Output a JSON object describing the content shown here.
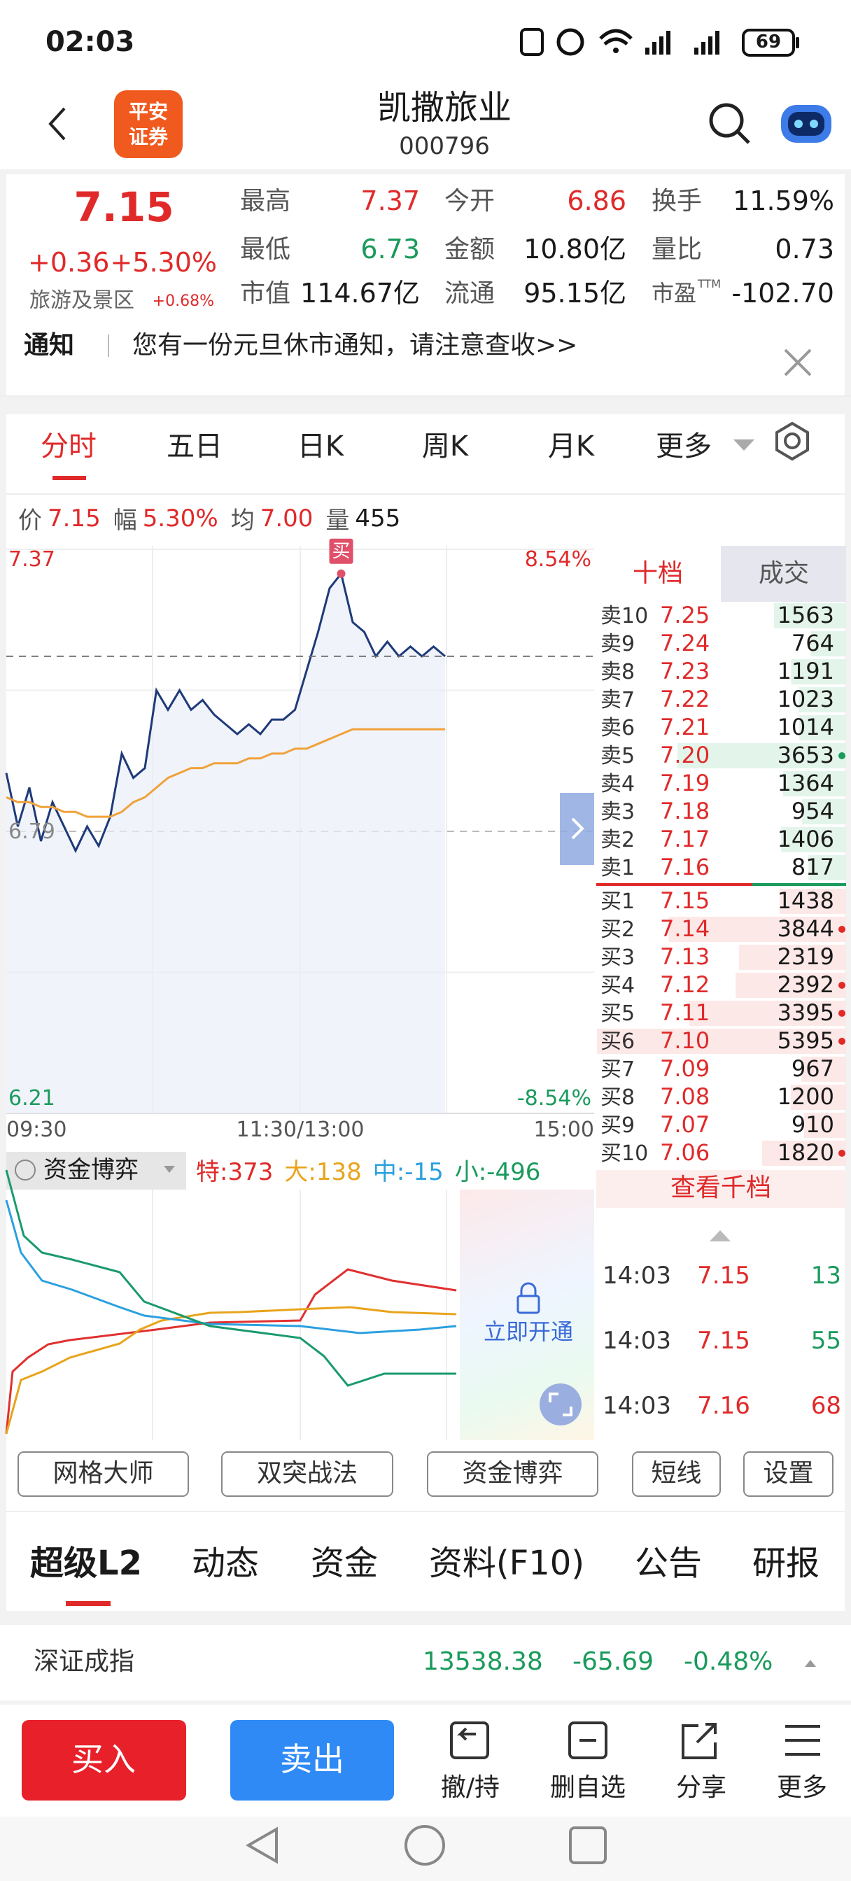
{
  "status_bar": {
    "time": "02:03",
    "battery": "69"
  },
  "header": {
    "logo": [
      "平安",
      "证券"
    ],
    "title": "凯撒旅业",
    "code": "000796"
  },
  "quote": {
    "price": "7.15",
    "change": "+0.36",
    "change_pct": "+5.30%",
    "sector": "旅游及景区",
    "sector_change": "+0.68%",
    "stats": [
      {
        "label": "最高",
        "value": "7.37"
      },
      {
        "label": "今开",
        "value": "6.86"
      },
      {
        "label": "换手",
        "value": "11.59%"
      },
      {
        "label": "最低",
        "value": "6.73"
      },
      {
        "label": "金额",
        "value": "10.80亿"
      },
      {
        "label": "量比",
        "value": "0.73"
      },
      {
        "label": "市值",
        "value": "114.67亿"
      },
      {
        "label": "流通",
        "value": "95.15亿"
      },
      {
        "label": "市盈",
        "label_sup": "TTM",
        "value": "-102.70"
      }
    ]
  },
  "notice": {
    "tag": "通知",
    "text": "您有一份元旦休市通知，请注意查收>>"
  },
  "chart_tabs": [
    "分时",
    "五日",
    "日K",
    "周K",
    "月K",
    "更多"
  ],
  "info_bar": [
    {
      "label": "价",
      "value": "7.15"
    },
    {
      "label": "幅",
      "value": "5.30%"
    },
    {
      "label": "均",
      "value": "7.00"
    },
    {
      "label": "量",
      "value": "455"
    }
  ],
  "chart_data": {
    "type": "line",
    "ylim": [
      6.21,
      7.37
    ],
    "yticks": [
      6.21,
      6.79,
      7.37
    ],
    "y2lim": [
      -8.54,
      8.54
    ],
    "y2ticks": [
      {
        "value": -8.54,
        "label": "-8.54%"
      },
      {
        "value": 8.54,
        "label": "8.54%"
      }
    ],
    "xticks": [
      "09:30",
      "11:30/13:00",
      "15:00"
    ],
    "grid": true,
    "buy_marker": "买",
    "series": [
      {
        "color": "#1e3a78",
        "values": [
          6.91,
          6.8,
          6.88,
          6.77,
          6.85,
          6.8,
          6.75,
          6.8,
          6.76,
          6.82,
          6.95,
          6.9,
          6.92,
          7.08,
          7.04,
          7.08,
          7.04,
          7.06,
          7.03,
          7.01,
          6.99,
          7.01,
          6.99,
          7.02,
          7.02,
          7.04,
          7.12,
          7.2,
          7.29,
          7.32,
          7.22,
          7.2,
          7.15,
          7.18,
          7.15,
          7.17,
          7.15,
          7.17,
          7.15
        ]
      },
      {
        "color": "#f0a23a",
        "values": [
          6.86,
          6.85,
          6.85,
          6.84,
          6.84,
          6.83,
          6.83,
          6.82,
          6.82,
          6.82,
          6.83,
          6.85,
          6.86,
          6.88,
          6.9,
          6.91,
          6.92,
          6.92,
          6.93,
          6.93,
          6.93,
          6.94,
          6.94,
          6.95,
          6.95,
          6.96,
          6.96,
          6.97,
          6.98,
          6.99,
          7.0,
          7.0,
          7.0,
          7.0,
          7.0,
          7.0,
          7.0,
          7.0,
          7.0
        ]
      }
    ]
  },
  "order_book": {
    "tabs": [
      "十档",
      "成交"
    ],
    "asks": [
      {
        "label": "卖10",
        "price": "7.25",
        "volume": 1563
      },
      {
        "label": "卖9",
        "price": "7.24",
        "volume": 764
      },
      {
        "label": "卖8",
        "price": "7.23",
        "volume": 1191
      },
      {
        "label": "卖7",
        "price": "7.22",
        "volume": 1023
      },
      {
        "label": "卖6",
        "price": "7.21",
        "volume": 1014
      },
      {
        "label": "卖5",
        "price": "7.20",
        "volume": 3653,
        "dot": true
      },
      {
        "label": "卖4",
        "price": "7.19",
        "volume": 1364
      },
      {
        "label": "卖3",
        "price": "7.18",
        "volume": 954
      },
      {
        "label": "卖2",
        "price": "7.17",
        "volume": 1406
      },
      {
        "label": "卖1",
        "price": "7.16",
        "volume": 817
      }
    ],
    "bids": [
      {
        "label": "买1",
        "price": "7.15",
        "volume": 1438
      },
      {
        "label": "买2",
        "price": "7.14",
        "volume": 3844,
        "dot": true
      },
      {
        "label": "买3",
        "price": "7.13",
        "volume": 2319
      },
      {
        "label": "买4",
        "price": "7.12",
        "volume": 2392,
        "dot": true
      },
      {
        "label": "买5",
        "price": "7.11",
        "volume": 3395,
        "dot": true
      },
      {
        "label": "买6",
        "price": "7.10",
        "volume": 5395,
        "dot": true
      },
      {
        "label": "买7",
        "price": "7.09",
        "volume": 967
      },
      {
        "label": "买8",
        "price": "7.08",
        "volume": 1200
      },
      {
        "label": "买9",
        "price": "7.07",
        "volume": 910
      },
      {
        "label": "买10",
        "price": "7.06",
        "volume": 1820,
        "dot": true
      }
    ],
    "more": "查看千档"
  },
  "trades": [
    {
      "time": "14:03",
      "price": "7.15",
      "volume": "13"
    },
    {
      "time": "14:03",
      "price": "7.15",
      "volume": "55"
    },
    {
      "time": "14:03",
      "price": "7.16",
      "volume": "68"
    }
  ],
  "fund_game": {
    "title": "资金博弈",
    "items": [
      "特:373",
      "大:138",
      "中:-15",
      "小:-496"
    ],
    "lock_text": "立即开通"
  },
  "tools": [
    "网格大师",
    "双突战法",
    "资金博弈",
    "短线",
    "设置"
  ],
  "detail_tabs": [
    "超级L2",
    "动态",
    "资金",
    "资料(F10)",
    "公告",
    "研报"
  ],
  "index": {
    "name": "深证成指",
    "value": "13538.38",
    "change": "-65.69",
    "change_pct": "-0.48%"
  },
  "bottom_bar": {
    "buy": "买入",
    "sell": "卖出",
    "actions": [
      "撤/持",
      "删自选",
      "分享",
      "更多"
    ]
  }
}
